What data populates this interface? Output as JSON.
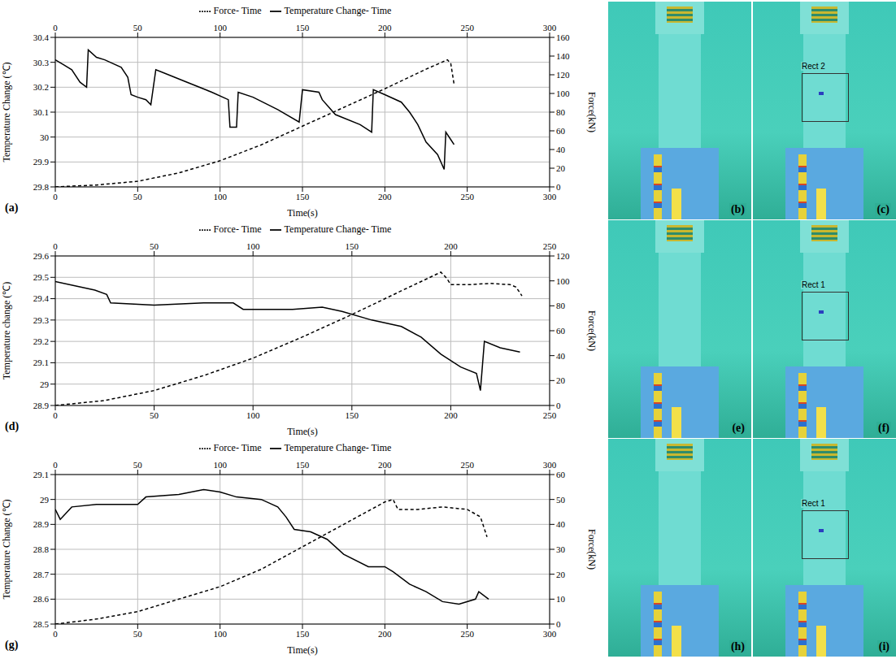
{
  "chart_data": [
    {
      "type": "line",
      "panel": "(a)",
      "x_label": "Time(s)",
      "y_label": "Temperature Change (℃)",
      "y2_label": "Force(kN)",
      "xlim": [
        0,
        300
      ],
      "xticks": [
        0,
        50,
        100,
        150,
        200,
        250,
        300
      ],
      "ylim": [
        29.8,
        30.4
      ],
      "yticks": [
        29.8,
        29.9,
        30,
        30.1,
        30.2,
        30.3,
        30.4
      ],
      "y2lim": [
        0,
        160
      ],
      "y2ticks": [
        0,
        20,
        40,
        60,
        80,
        100,
        120,
        140,
        160
      ],
      "grid": true,
      "legend": "top",
      "series": [
        {
          "name": "Temperature Change- Time",
          "color": "#000000",
          "line_style": "solid",
          "x": [
            0,
            5,
            10,
            15,
            19,
            20,
            25,
            30,
            40,
            44,
            46,
            50,
            55,
            58,
            61,
            65,
            80,
            95,
            105,
            106,
            110,
            111,
            120,
            135,
            148,
            150,
            160,
            162,
            170,
            185,
            192,
            193,
            200,
            210,
            215,
            220,
            225,
            232,
            236,
            237,
            240,
            242
          ],
          "values": [
            30.31,
            30.29,
            30.27,
            30.22,
            30.2,
            30.35,
            30.32,
            30.31,
            30.28,
            30.24,
            30.17,
            30.16,
            30.15,
            30.13,
            30.27,
            30.26,
            30.22,
            30.18,
            30.15,
            30.04,
            30.04,
            30.18,
            30.16,
            30.11,
            30.06,
            30.19,
            30.18,
            30.15,
            30.09,
            30.05,
            30.02,
            30.19,
            30.17,
            30.14,
            30.1,
            30.05,
            29.98,
            29.93,
            29.87,
            30.02,
            29.99,
            29.97
          ]
        },
        {
          "name": "Force- Time",
          "color": "#000000",
          "line_style": "dashed",
          "axis": "y2",
          "x": [
            0,
            25,
            50,
            75,
            100,
            125,
            150,
            175,
            200,
            225,
            238,
            240,
            242
          ],
          "values": [
            0,
            2,
            6,
            15,
            28,
            45,
            65,
            85,
            105,
            126,
            136,
            132,
            110
          ]
        }
      ]
    },
    {
      "type": "line",
      "panel": "(d)",
      "x_label": "Time(s)",
      "y_label": "Temperature change (℃)",
      "y2_label": "Force(kN)",
      "xlim": [
        0,
        250
      ],
      "xticks": [
        0,
        50,
        100,
        150,
        200,
        250
      ],
      "ylim": [
        28.9,
        29.6
      ],
      "yticks": [
        28.9,
        29,
        29.1,
        29.2,
        29.3,
        29.4,
        29.5,
        29.6
      ],
      "y2lim": [
        0,
        120
      ],
      "y2ticks": [
        0,
        20,
        40,
        60,
        80,
        100,
        120
      ],
      "grid": true,
      "legend": "top",
      "series": [
        {
          "name": "Temperature Change- Time",
          "color": "#000000",
          "line_style": "solid",
          "x": [
            0,
            10,
            20,
            26,
            28,
            50,
            75,
            90,
            95,
            120,
            135,
            145,
            160,
            175,
            185,
            195,
            205,
            213,
            215,
            217,
            225,
            235
          ],
          "values": [
            29.48,
            29.46,
            29.44,
            29.42,
            29.38,
            29.37,
            29.38,
            29.38,
            29.35,
            29.35,
            29.36,
            29.34,
            29.3,
            29.27,
            29.22,
            29.14,
            29.08,
            29.05,
            28.97,
            29.2,
            29.17,
            29.15
          ]
        },
        {
          "name": "Force- Time",
          "color": "#000000",
          "line_style": "dashed",
          "axis": "y2",
          "x": [
            0,
            25,
            50,
            75,
            100,
            125,
            150,
            175,
            195,
            198,
            200,
            210,
            220,
            230,
            233,
            236
          ],
          "values": [
            0,
            4,
            12,
            24,
            38,
            55,
            73,
            92,
            107,
            102,
            97,
            97,
            98,
            97,
            95,
            88
          ]
        }
      ]
    },
    {
      "type": "line",
      "panel": "(g)",
      "x_label": "Time(s)",
      "y_label": "Temperature Change (℃)",
      "y2_label": "Force(kN)",
      "xlim": [
        0,
        300
      ],
      "xticks": [
        0,
        50,
        100,
        150,
        200,
        250,
        300
      ],
      "ylim": [
        28.5,
        29.1
      ],
      "yticks": [
        28.5,
        28.6,
        28.7,
        28.8,
        28.9,
        29,
        29.1
      ],
      "y2lim": [
        0,
        60
      ],
      "y2ticks": [
        0,
        10,
        20,
        30,
        40,
        50,
        60
      ],
      "grid": true,
      "legend": "top",
      "series": [
        {
          "name": "Temperature Change- Time",
          "color": "#000000",
          "line_style": "solid",
          "x": [
            0,
            3,
            10,
            25,
            50,
            55,
            75,
            90,
            100,
            110,
            125,
            135,
            140,
            145,
            155,
            165,
            175,
            190,
            200,
            205,
            215,
            225,
            235,
            245,
            255,
            257,
            263
          ],
          "values": [
            28.96,
            28.92,
            28.97,
            28.98,
            28.98,
            29.01,
            29.02,
            29.04,
            29.03,
            29.01,
            29.0,
            28.97,
            28.93,
            28.88,
            28.87,
            28.84,
            28.78,
            28.73,
            28.73,
            28.71,
            28.66,
            28.63,
            28.59,
            28.58,
            28.6,
            28.63,
            28.6
          ]
        },
        {
          "name": "Force- Time",
          "color": "#000000",
          "line_style": "dashed",
          "axis": "y2",
          "x": [
            0,
            25,
            50,
            75,
            100,
            125,
            150,
            175,
            200,
            205,
            208,
            220,
            235,
            250,
            258,
            262
          ],
          "values": [
            0,
            2,
            5,
            10,
            15,
            22,
            31,
            40,
            49,
            50,
            46,
            46,
            47,
            46,
            43,
            35
          ]
        }
      ]
    }
  ],
  "images": [
    {
      "label": "(b)"
    },
    {
      "label": "(c)",
      "roi": "Rect 2"
    },
    {
      "label": "(e)"
    },
    {
      "label": "(f)",
      "roi": "Rect 1"
    },
    {
      "label": "(h)"
    },
    {
      "label": "(i)",
      "roi": "Rect 1"
    }
  ]
}
